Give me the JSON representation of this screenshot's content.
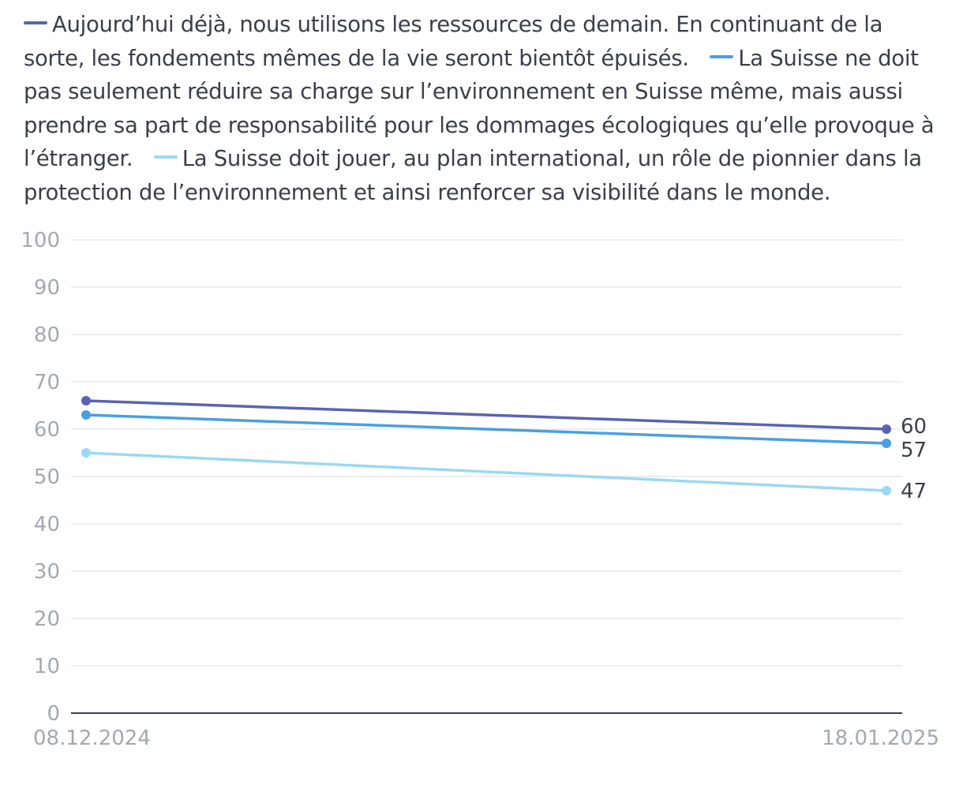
{
  "chart_data": {
    "type": "line",
    "x": [
      "08.12.2024",
      "18.01.2025"
    ],
    "ylim": [
      0,
      100
    ],
    "yticks": [
      0,
      10,
      20,
      30,
      40,
      50,
      60,
      70,
      80,
      90,
      100
    ],
    "grid": true,
    "legend": "top",
    "end_labels": true,
    "series": [
      {
        "name": "Aujourd’hui déjà, nous utilisons les ressources de demain. En continuant de la sorte, les fondements mêmes de la vie seront bientôt épuisés.",
        "color": "#5b63b1",
        "values": [
          66,
          60
        ]
      },
      {
        "name": "La Suisse ne doit pas seulement réduire sa charge sur l’environnement en Suisse même, mais aussi prendre sa part de responsabilité pour les dommages écologiques qu’elle provoque à l’étranger.",
        "color": "#4a9fe3",
        "values": [
          63,
          57
        ]
      },
      {
        "name": "La Suisse doit jouer, au plan international, un rôle de pionnier dans la protection de l’environnement et ainsi renforcer sa visibilité dans le monde.",
        "color": "#9ad9f3",
        "values": [
          55,
          47
        ]
      }
    ]
  }
}
